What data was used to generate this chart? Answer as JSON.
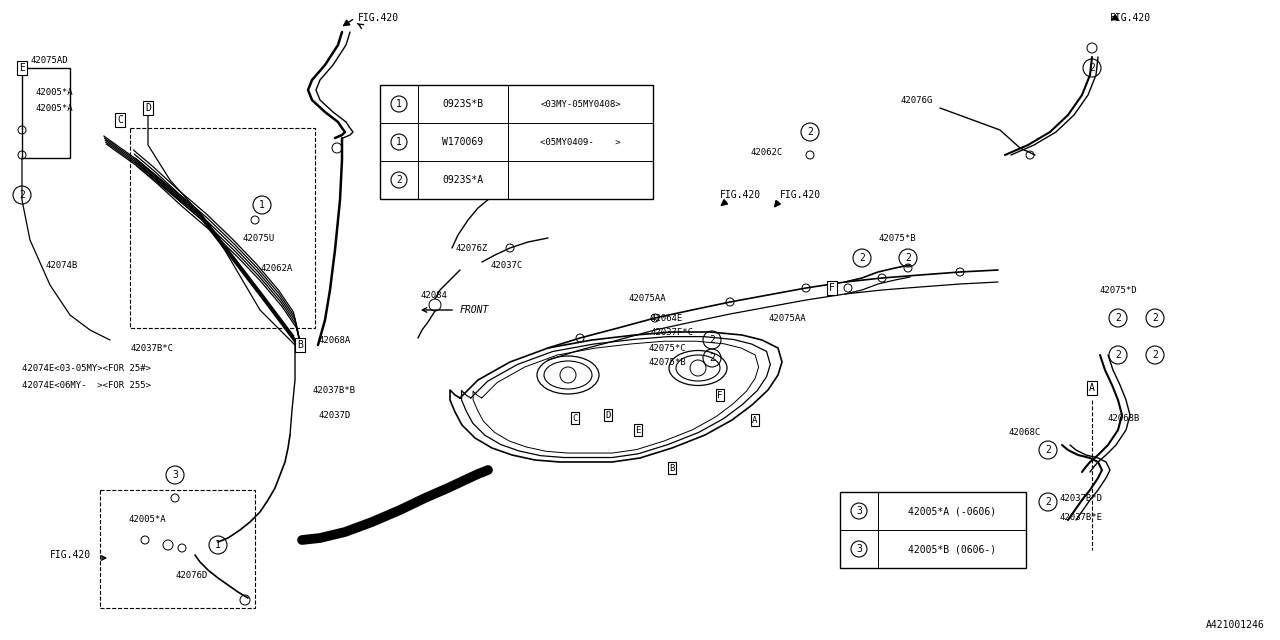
{
  "bg_color": "#ffffff",
  "line_color": "#000000",
  "watermark": "A421001246",
  "table1_rows": [
    [
      "1",
      "0923S*B",
      "<03MY-05MY0408>"
    ],
    [
      "1",
      "W170069",
      "<05MY0409-    >"
    ],
    [
      "2",
      "0923S*A",
      ""
    ]
  ],
  "table2_rows": [
    [
      "3",
      "42005*A (-0606)"
    ],
    [
      "3",
      "42005*B (0606-)"
    ]
  ]
}
